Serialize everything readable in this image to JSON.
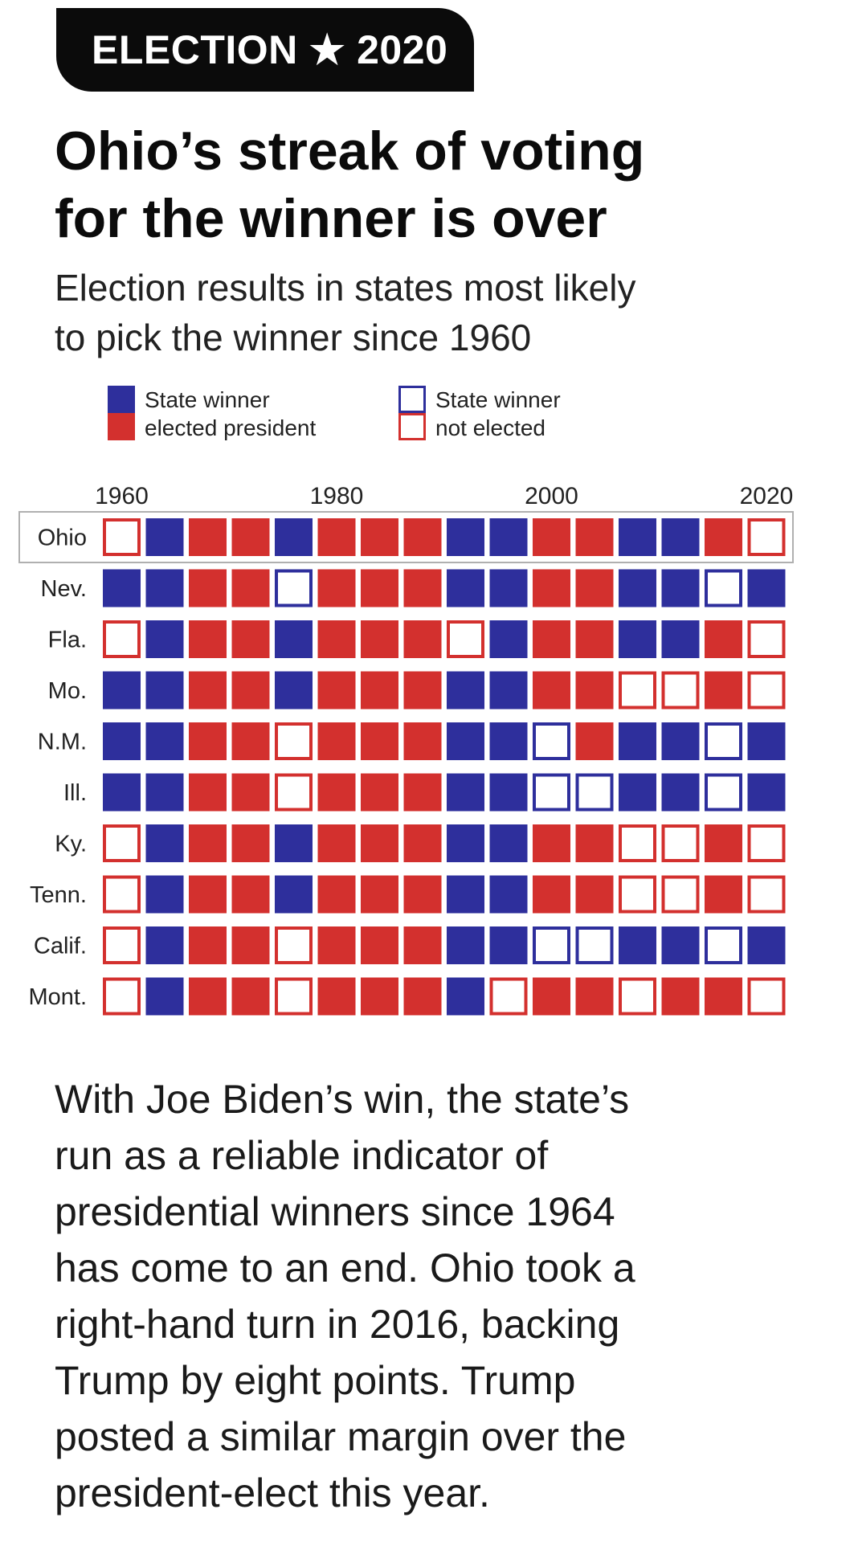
{
  "header": {
    "tag_left": "ELECTION",
    "tag_star": "★",
    "tag_right": "2020"
  },
  "title_lines": [
    "Ohio’s streak of voting",
    "for the winner is over"
  ],
  "subtitle_lines": [
    "Election results in states most likely",
    "to pick the winner since 1960"
  ],
  "legend": {
    "elected": [
      "State winner",
      "elected president"
    ],
    "not_elected": [
      "State winner",
      "not elected"
    ]
  },
  "colors": {
    "dem": "#2e2f9c",
    "rep": "#d3302e",
    "box_border": "#b0b0b0",
    "label": "#222222"
  },
  "chart_data": {
    "type": "heatmap",
    "years": [
      1960,
      1964,
      1968,
      1972,
      1976,
      1980,
      1984,
      1988,
      1992,
      1996,
      2000,
      2004,
      2008,
      2012,
      2016,
      2020
    ],
    "x_tick_labels": [
      "1960",
      "1980",
      "2000",
      "2020"
    ],
    "x_tick_years": [
      1960,
      1980,
      2000,
      2020
    ],
    "highlighted_state": "Ohio",
    "legend_placement": "top",
    "cell_key": {
      "D": "Democratic winner, elected president",
      "R": "Republican winner, elected president",
      "d": "Democratic winner, not elected",
      "r": "Republican winner, not elected"
    },
    "states": [
      {
        "label": "Ohio",
        "results": [
          "r",
          "D",
          "R",
          "R",
          "D",
          "R",
          "R",
          "R",
          "D",
          "D",
          "R",
          "R",
          "D",
          "D",
          "R",
          "r"
        ]
      },
      {
        "label": "Nev.",
        "results": [
          "D",
          "D",
          "R",
          "R",
          "d",
          "R",
          "R",
          "R",
          "D",
          "D",
          "R",
          "R",
          "D",
          "D",
          "d",
          "D"
        ]
      },
      {
        "label": "Fla.",
        "results": [
          "r",
          "D",
          "R",
          "R",
          "D",
          "R",
          "R",
          "R",
          "r",
          "D",
          "R",
          "R",
          "D",
          "D",
          "R",
          "r"
        ]
      },
      {
        "label": "Mo.",
        "results": [
          "D",
          "D",
          "R",
          "R",
          "D",
          "R",
          "R",
          "R",
          "D",
          "D",
          "R",
          "R",
          "r",
          "r",
          "R",
          "r"
        ]
      },
      {
        "label": "N.M.",
        "results": [
          "D",
          "D",
          "R",
          "R",
          "r",
          "R",
          "R",
          "R",
          "D",
          "D",
          "d",
          "R",
          "D",
          "D",
          "d",
          "D"
        ]
      },
      {
        "label": "Ill.",
        "results": [
          "D",
          "D",
          "R",
          "R",
          "r",
          "R",
          "R",
          "R",
          "D",
          "D",
          "d",
          "d",
          "D",
          "D",
          "d",
          "D"
        ]
      },
      {
        "label": "Ky.",
        "results": [
          "r",
          "D",
          "R",
          "R",
          "D",
          "R",
          "R",
          "R",
          "D",
          "D",
          "R",
          "R",
          "r",
          "r",
          "R",
          "r"
        ]
      },
      {
        "label": "Tenn.",
        "results": [
          "r",
          "D",
          "R",
          "R",
          "D",
          "R",
          "R",
          "R",
          "D",
          "D",
          "R",
          "R",
          "r",
          "r",
          "R",
          "r"
        ]
      },
      {
        "label": "Calif.",
        "results": [
          "r",
          "D",
          "R",
          "R",
          "r",
          "R",
          "R",
          "R",
          "D",
          "D",
          "d",
          "d",
          "D",
          "D",
          "d",
          "D"
        ]
      },
      {
        "label": "Mont.",
        "results": [
          "r",
          "D",
          "R",
          "R",
          "r",
          "R",
          "R",
          "R",
          "D",
          "r",
          "R",
          "R",
          "r",
          "R",
          "R",
          "r"
        ]
      }
    ]
  },
  "body_lines": [
    "With Joe Biden’s win, the state’s",
    "run as a reliable indicator of",
    "presidential winners since 1964",
    "has come to an end. Ohio took a",
    "right-hand turn in 2016, backing",
    "Trump by eight points. Trump",
    "posted a similar margin over the",
    "president-elect this year."
  ]
}
